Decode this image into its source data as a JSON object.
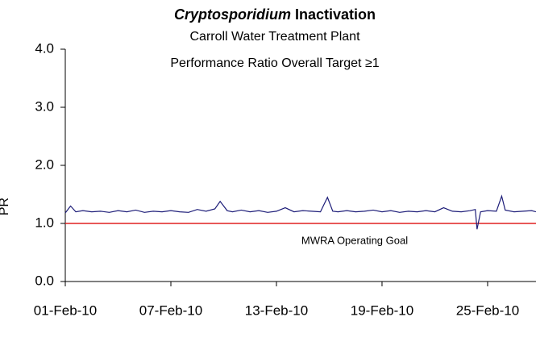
{
  "chart_data": {
    "type": "line",
    "title": [
      "Cryptosporidium",
      "Inactivation"
    ],
    "subtitle": [
      "Carroll Water Treatment Plant",
      "Performance Ratio Overall Target ≥1"
    ],
    "y_label": "PR",
    "xlim": [
      0,
      26.75
    ],
    "xticks": [
      {
        "value": 0,
        "label": "01-Feb-10"
      },
      {
        "value": 6,
        "label": "07-Feb-10"
      },
      {
        "value": 12,
        "label": "13-Feb-10"
      },
      {
        "value": 18,
        "label": "19-Feb-10"
      },
      {
        "value": 24,
        "label": "25-Feb-10"
      }
    ],
    "ylim": [
      0,
      4
    ],
    "yticks": [
      {
        "value": 0,
        "label": "0.0"
      },
      {
        "value": 1,
        "label": "1.0"
      },
      {
        "value": 2,
        "label": "2.0"
      },
      {
        "value": 3,
        "label": "3.0"
      },
      {
        "value": 4,
        "label": "4.0"
      }
    ],
    "reference_line": {
      "value": 1.0,
      "label": "MWRA Operating Goal",
      "color": "#e02020"
    },
    "series": [
      {
        "color": "#1c1c78",
        "x": [
          0,
          0.3,
          0.6,
          1,
          1.5,
          2,
          2.5,
          3,
          3.5,
          4,
          4.5,
          5,
          5.5,
          6,
          6.5,
          7,
          7.5,
          8,
          8.5,
          8.8,
          9.2,
          9.5,
          10,
          10.5,
          11,
          11.5,
          12,
          12.5,
          13,
          13.5,
          14,
          14.5,
          14.9,
          15.2,
          15.5,
          16,
          16.5,
          17,
          17.5,
          18,
          18.5,
          19,
          19.5,
          20,
          20.5,
          21,
          21.5,
          22,
          22.5,
          23,
          23.3,
          23.4,
          23.6,
          24,
          24.5,
          24.8,
          25,
          25.5,
          26,
          26.5,
          26.75
        ],
        "values": [
          1.18,
          1.3,
          1.2,
          1.22,
          1.2,
          1.21,
          1.19,
          1.22,
          1.2,
          1.23,
          1.19,
          1.21,
          1.2,
          1.22,
          1.2,
          1.19,
          1.24,
          1.21,
          1.25,
          1.38,
          1.22,
          1.2,
          1.23,
          1.2,
          1.22,
          1.19,
          1.21,
          1.27,
          1.2,
          1.22,
          1.21,
          1.2,
          1.45,
          1.21,
          1.2,
          1.22,
          1.2,
          1.21,
          1.23,
          1.2,
          1.22,
          1.19,
          1.21,
          1.2,
          1.22,
          1.2,
          1.27,
          1.21,
          1.2,
          1.22,
          1.24,
          0.9,
          1.2,
          1.22,
          1.21,
          1.47,
          1.23,
          1.2,
          1.21,
          1.22,
          1.2
        ]
      }
    ]
  }
}
